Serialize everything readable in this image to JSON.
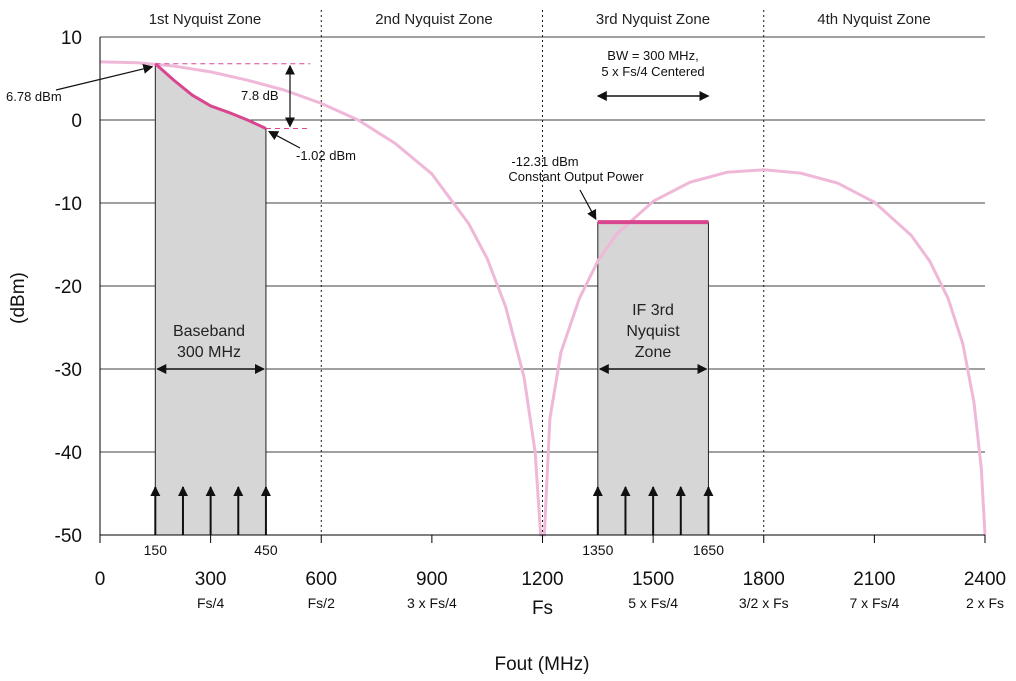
{
  "chart_data": {
    "type": "line",
    "xlabel": "Fout (MHz)",
    "ylabel": "(dBm)",
    "xlim": [
      0,
      2400
    ],
    "ylim": [
      -50,
      10
    ],
    "grid": "horizontal",
    "y_ticks": [
      "10",
      "0",
      "-10",
      "-20",
      "-30",
      "-40",
      "-50"
    ],
    "x_ticks": [
      {
        "value": 0,
        "label": "0",
        "sub": ""
      },
      {
        "value": 300,
        "label": "300",
        "sub": "Fs/4"
      },
      {
        "value": 600,
        "label": "600",
        "sub": "Fs/2"
      },
      {
        "value": 900,
        "label": "900",
        "sub": "3 x Fs/4"
      },
      {
        "value": 1200,
        "label": "1200",
        "sub": "Fs"
      },
      {
        "value": 1500,
        "label": "1500",
        "sub": "5 x Fs/4"
      },
      {
        "value": 1800,
        "label": "1800",
        "sub": "3/2 x Fs"
      },
      {
        "value": 2100,
        "label": "2100",
        "sub": "7 x Fs/4"
      },
      {
        "value": 2400,
        "label": "2400",
        "sub": "2 x Fs"
      }
    ],
    "zones": [
      "1st Nyquist Zone",
      "2nd Nyquist Zone",
      "3rd Nyquist Zone",
      "4th Nyquist Zone"
    ],
    "zone_boundaries": [
      600,
      1200,
      1800
    ],
    "sinc_envelope": {
      "color": "#f0b8d8",
      "x": [
        0,
        100,
        200,
        300,
        400,
        500,
        600,
        700,
        800,
        900,
        1000,
        1050,
        1100,
        1150,
        1180,
        1195,
        1200,
        1205,
        1220,
        1250,
        1300,
        1350,
        1400,
        1500,
        1600,
        1700,
        1800,
        1900,
        2000,
        2100,
        2200,
        2250,
        2300,
        2340,
        2370,
        2390,
        2400
      ],
      "y": [
        7.0,
        6.9,
        6.5,
        5.8,
        4.8,
        3.6,
        2.0,
        0.0,
        -2.8,
        -6.5,
        -12.5,
        -16.7,
        -22.5,
        -31.0,
        -40.0,
        -50.0,
        -50.0,
        -50.0,
        -36.0,
        -28.0,
        -21.5,
        -17.0,
        -13.8,
        -9.8,
        -7.5,
        -6.3,
        -6.0,
        -6.4,
        -7.6,
        -9.9,
        -13.9,
        -17.0,
        -21.5,
        -27.0,
        -34.0,
        -42.0,
        -50.0
      ]
    },
    "baseband_region": {
      "x": [
        150,
        200,
        250,
        300,
        350,
        400,
        450
      ],
      "y": [
        6.78,
        4.8,
        3.0,
        1.7,
        0.9,
        0.0,
        -1.02
      ],
      "label_line1": "Baseband",
      "label_line2": "300 MHz",
      "fill": "#d6d6d6"
    },
    "if_region": {
      "x_start": 1350,
      "x_end": 1650,
      "level": -12.31,
      "label_line1": "IF 3rd",
      "label_line2": "Nyquist",
      "label_line3": "Zone",
      "fill": "#d6d6d6"
    },
    "tone_x_baseband": [
      150,
      225,
      300,
      375,
      450
    ],
    "tone_x_if": [
      1350,
      1425,
      1500,
      1575,
      1650
    ],
    "edge_labels": [
      {
        "value": 150,
        "label": "150"
      },
      {
        "value": 450,
        "label": "450"
      },
      {
        "value": 1350,
        "label": "1350"
      },
      {
        "value": 1650,
        "label": "1650"
      }
    ],
    "annotations": {
      "peak": "6.78 dBm",
      "drop": "7.8 dB",
      "low": "-1.02 dBm",
      "constant_line1": "-12.31 dBm",
      "constant_line2": "Constant Output Power",
      "bw_line1": "BW = 300 MHz,",
      "bw_line2": "5 x Fs/4 Centered"
    },
    "colors": {
      "envelope": "#f0b8d8",
      "output": "#d9468f",
      "grid": "#000000",
      "region_fill": "#d6d6d6"
    }
  }
}
